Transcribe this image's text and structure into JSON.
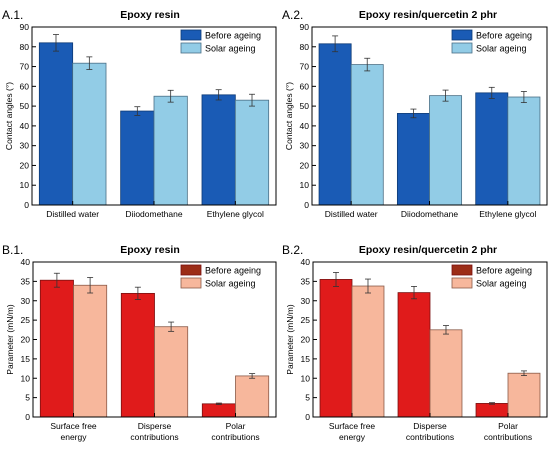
{
  "chart_data": [
    {
      "type": "bar",
      "panel_label": "A.1.",
      "title": "Epoxy resin",
      "ylabel": "Contact angles (°)",
      "xlabel": "",
      "ylim": [
        0,
        90
      ],
      "ytick_step": 10,
      "categories": [
        [
          "Distilled water"
        ],
        [
          "Diiodomethane"
        ],
        [
          "Ethylene glycol"
        ]
      ],
      "series": [
        {
          "name": "Before ageing",
          "values": [
            82,
            47.5,
            55.7
          ],
          "errors": [
            4.2,
            2.2,
            2.6
          ],
          "color": "#1a5bb5",
          "edge": "#0d3a75"
        },
        {
          "name": "Solar ageing",
          "values": [
            71.7,
            55,
            53
          ],
          "errors": [
            3.2,
            3.0,
            3.0
          ],
          "color": "#92cce6",
          "edge": "#4a6f86"
        }
      ],
      "legend": "top-right",
      "grid": false
    },
    {
      "type": "bar",
      "panel_label": "A.2.",
      "title": "Epoxy resin/quercetin 2 phr",
      "ylabel": "Contact angles (°)",
      "xlabel": "",
      "ylim": [
        0,
        90
      ],
      "ytick_step": 10,
      "categories": [
        [
          "Distilled water"
        ],
        [
          "Diiodomethane"
        ],
        [
          "Ethylene glycol"
        ]
      ],
      "series": [
        {
          "name": "Before ageing",
          "values": [
            81.5,
            46.3,
            56.7
          ],
          "errors": [
            4.0,
            2.2,
            2.8
          ],
          "color": "#1a5bb5",
          "edge": "#0d3a75"
        },
        {
          "name": "Solar ageing",
          "values": [
            71,
            55.3,
            54.6
          ],
          "errors": [
            3.2,
            2.8,
            2.8
          ],
          "color": "#92cce6",
          "edge": "#4a6f86"
        }
      ],
      "legend": "top-right",
      "grid": false
    },
    {
      "type": "bar",
      "panel_label": "B.1.",
      "title": "Epoxy resin",
      "ylabel": "Parameter (mN/m)",
      "xlabel": "",
      "ylim": [
        0,
        40
      ],
      "ytick_step": 5,
      "categories": [
        [
          "Surface free",
          "energy"
        ],
        [
          "Disperse",
          "contributions"
        ],
        [
          "Polar",
          "contributions"
        ]
      ],
      "series": [
        {
          "name": "Before ageing",
          "values": [
            35.3,
            31.9,
            3.4
          ],
          "errors": [
            1.8,
            1.6,
            0.2
          ],
          "color": "#e01b1b",
          "edge": "#7a1010",
          "legend_color": "#9c2d17"
        },
        {
          "name": "Solar ageing",
          "values": [
            34.0,
            23.3,
            10.6
          ],
          "errors": [
            2.0,
            1.2,
            0.6
          ],
          "color": "#f7b79c",
          "edge": "#8a5a48"
        }
      ],
      "legend": "top-right",
      "grid": false
    },
    {
      "type": "bar",
      "panel_label": "B.2.",
      "title": "Epoxy resin/quercetin 2 phr",
      "ylabel": "Parameter (mN/m)",
      "xlabel": "",
      "ylim": [
        0,
        40
      ],
      "ytick_step": 5,
      "categories": [
        [
          "Surface free",
          "energy"
        ],
        [
          "Disperse",
          "contributions"
        ],
        [
          "Polar",
          "contributions"
        ]
      ],
      "series": [
        {
          "name": "Before ageing",
          "values": [
            35.5,
            32.1,
            3.5
          ],
          "errors": [
            1.8,
            1.6,
            0.2
          ],
          "color": "#e01b1b",
          "edge": "#7a1010",
          "legend_color": "#9c2d17"
        },
        {
          "name": "Solar ageing",
          "values": [
            33.8,
            22.5,
            11.3
          ],
          "errors": [
            1.8,
            1.1,
            0.6
          ],
          "color": "#f7b79c",
          "edge": "#8a5a48"
        }
      ],
      "legend": "top-right",
      "grid": false
    }
  ]
}
